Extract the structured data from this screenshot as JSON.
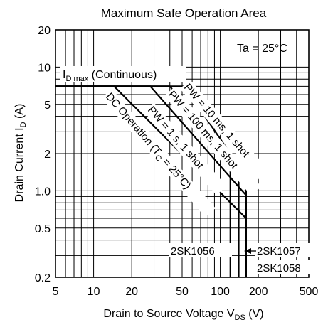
{
  "chart_data": {
    "type": "line",
    "title": "Maximum Safe Operation Area",
    "xlabel": {
      "main": "Drain to Source Voltage  V",
      "sub": "DS",
      "unit": "  (V)"
    },
    "ylabel": {
      "main": "Drain Current  I",
      "sub": "D",
      "unit": "  (A)"
    },
    "xscale": "log",
    "yscale": "log",
    "xlim": [
      5,
      500
    ],
    "ylim": [
      0.2,
      20
    ],
    "x_ticks": [
      {
        "v": 5,
        "label": "5"
      },
      {
        "v": 10,
        "label": "10"
      },
      {
        "v": 20,
        "label": "20"
      },
      {
        "v": 50,
        "label": "50"
      },
      {
        "v": 100,
        "label": "100"
      },
      {
        "v": 200,
        "label": "200"
      },
      {
        "v": 500,
        "label": "500"
      }
    ],
    "y_ticks": [
      {
        "v": 0.2,
        "label": "0.2"
      },
      {
        "v": 0.5,
        "label": "0.5"
      },
      {
        "v": 1.0,
        "label": "1.0"
      },
      {
        "v": 2,
        "label": "2"
      },
      {
        "v": 5,
        "label": "5"
      },
      {
        "v": 10,
        "label": "10"
      },
      {
        "v": 20,
        "label": "20"
      }
    ],
    "grid": true,
    "condition": "Ta = 25°C",
    "id_max_label": {
      "main": "I",
      "sub": "D max",
      "rest": " (Continuous)"
    },
    "series": [
      {
        "name": "DC Operation (TC = 25°C)",
        "points": [
          [
            5,
            7
          ],
          [
            14.5,
            7
          ],
          [
            160,
            0.6
          ],
          [
            160,
            0.2
          ]
        ]
      },
      {
        "name": "PW = 1 s, 1 shot",
        "points": [
          [
            5,
            7
          ],
          [
            28,
            7
          ],
          [
            160,
            0.92
          ],
          [
            160,
            0.2
          ]
        ]
      },
      {
        "name": "PW = 100 ms, 1 shot",
        "points": [
          [
            5,
            7
          ],
          [
            40,
            7
          ],
          [
            160,
            1.2
          ],
          [
            160,
            0.2
          ]
        ]
      },
      {
        "name": "PW = 10 ms, 1 shot",
        "points": [
          [
            5,
            7
          ],
          [
            52,
            7
          ],
          [
            160,
            1.3
          ],
          [
            160,
            0.2
          ]
        ]
      }
    ],
    "voltage_limits": [
      {
        "v": 120,
        "from": 0.2,
        "to": 1.6
      },
      {
        "v": 140,
        "from": 0.2,
        "to": 1.3
      },
      {
        "v": 160,
        "from": 0.2,
        "to": 1.3
      }
    ],
    "curve_labels": [
      {
        "text": "DC Operation (T",
        "sub": "C",
        "rest": " = 25°C)"
      },
      {
        "text": "PW = 1 s, 1 shot"
      },
      {
        "text": "PW = 100 ms, 1 shot"
      },
      {
        "text": "PW = 10 ms, 1 shot"
      }
    ],
    "part_labels": [
      "2SK1056",
      "2SK1057",
      "2SK1058"
    ]
  }
}
